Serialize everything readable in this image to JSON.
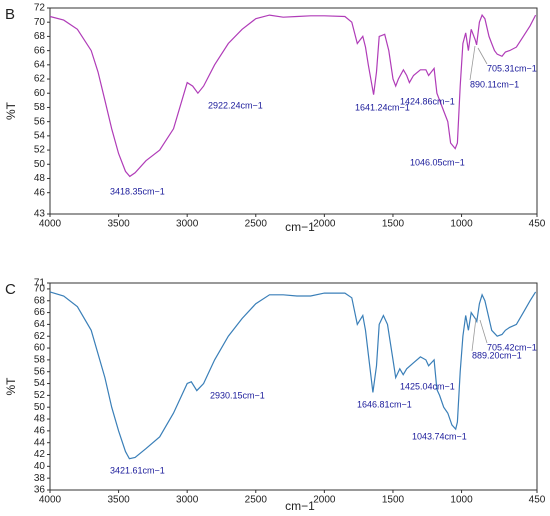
{
  "chart_data": [
    {
      "type": "line",
      "title": "B",
      "xlabel": "cm−1",
      "ylabel": "%T",
      "xlim": [
        4000,
        450
      ],
      "ylim": [
        43,
        72
      ],
      "xticks": [
        4000,
        3500,
        3000,
        2500,
        2000,
        1500,
        1000,
        450
      ],
      "yticks": [
        43,
        46,
        48,
        50,
        52,
        54,
        56,
        58,
        60,
        62,
        64,
        66,
        68,
        70,
        72
      ],
      "color": "#b03cb8",
      "x": [
        4000,
        3900,
        3800,
        3700,
        3650,
        3600,
        3550,
        3500,
        3450,
        3418,
        3380,
        3300,
        3200,
        3100,
        3000,
        2960,
        2922,
        2880,
        2800,
        2700,
        2600,
        2500,
        2400,
        2300,
        2200,
        2100,
        2000,
        1850,
        1800,
        1760,
        1720,
        1700,
        1680,
        1641,
        1620,
        1600,
        1560,
        1530,
        1500,
        1480,
        1460,
        1424,
        1400,
        1380,
        1350,
        1300,
        1260,
        1240,
        1200,
        1180,
        1160,
        1130,
        1100,
        1080,
        1046,
        1030,
        1010,
        990,
        970,
        950,
        930,
        900,
        890,
        870,
        850,
        830,
        800,
        780,
        760,
        740,
        705,
        680,
        650,
        600,
        550,
        500,
        460
      ],
      "values": [
        70.8,
        70.3,
        69,
        66,
        63,
        59,
        55,
        51.5,
        49,
        48.3,
        48.8,
        50.5,
        52,
        55,
        61.5,
        61,
        60,
        61,
        64,
        67,
        69,
        70.5,
        71,
        70.7,
        70.8,
        70.9,
        70.9,
        70.8,
        70,
        67,
        68,
        66.5,
        64,
        59.8,
        63,
        68,
        68.3,
        66,
        62,
        61,
        62,
        63.3,
        62.5,
        61.5,
        62.5,
        63.3,
        63.3,
        62.5,
        63.5,
        60,
        59,
        57.5,
        56,
        53,
        52.2,
        53,
        61,
        67,
        68.5,
        66,
        69,
        67.5,
        66.8,
        70,
        71,
        70.5,
        68,
        67,
        66,
        65.5,
        65.2,
        65.8,
        66,
        66.5,
        68,
        69.5,
        71
      ],
      "annotations": [
        "3418.35cm−1",
        "2922.24cm−1",
        "1641.24cm−1",
        "1424.86cm−1",
        "1046.05cm−1",
        "890.11cm−1",
        "705.31cm−1"
      ]
    },
    {
      "type": "line",
      "title": "C",
      "xlabel": "cm−1",
      "ylabel": "%T",
      "xlim": [
        4000,
        450
      ],
      "ylim": [
        36,
        71
      ],
      "xticks": [
        4000,
        3500,
        3000,
        2500,
        2000,
        1500,
        1000,
        450
      ],
      "yticks": [
        36,
        38,
        40,
        42,
        44,
        46,
        48,
        50,
        52,
        54,
        56,
        58,
        60,
        62,
        64,
        66,
        68,
        70,
        71
      ],
      "color": "#3a7fb8",
      "x": [
        4000,
        3900,
        3800,
        3700,
        3600,
        3550,
        3500,
        3450,
        3421,
        3380,
        3300,
        3200,
        3100,
        3000,
        2970,
        2930,
        2880,
        2800,
        2700,
        2600,
        2500,
        2400,
        2300,
        2200,
        2100,
        2000,
        1850,
        1800,
        1760,
        1720,
        1700,
        1680,
        1646,
        1620,
        1600,
        1570,
        1540,
        1500,
        1480,
        1450,
        1425,
        1400,
        1350,
        1300,
        1260,
        1240,
        1200,
        1180,
        1160,
        1130,
        1100,
        1070,
        1043,
        1030,
        1010,
        990,
        970,
        950,
        930,
        900,
        889,
        870,
        850,
        830,
        800,
        780,
        760,
        740,
        705,
        680,
        650,
        600,
        550,
        500,
        460
      ],
      "values": [
        69.5,
        68.8,
        67,
        63,
        55,
        50,
        46,
        42.5,
        41.3,
        41.5,
        43,
        45,
        49,
        54,
        54.3,
        52.8,
        54,
        58,
        62,
        65,
        67.5,
        69,
        69,
        68.8,
        68.8,
        69.3,
        69.3,
        68.5,
        64,
        65.5,
        63,
        59,
        52.5,
        57,
        64,
        65.5,
        64,
        58,
        55,
        56.5,
        55.5,
        56.5,
        57.5,
        58.5,
        58,
        57,
        58,
        53,
        52,
        50,
        49,
        47,
        46.3,
        47.5,
        56,
        62,
        65.5,
        63,
        66,
        65,
        64.5,
        67.5,
        69,
        68,
        65,
        63,
        62.5,
        62,
        62.3,
        63,
        63.5,
        64,
        66,
        68,
        69.5
      ],
      "annotations": [
        "3421.61cm−1",
        "2930.15cm−1",
        "1646.81cm−1",
        "1425.04cm−1",
        "1043.74cm−1",
        "889.20cm−1",
        "705.42cm−1"
      ]
    }
  ]
}
